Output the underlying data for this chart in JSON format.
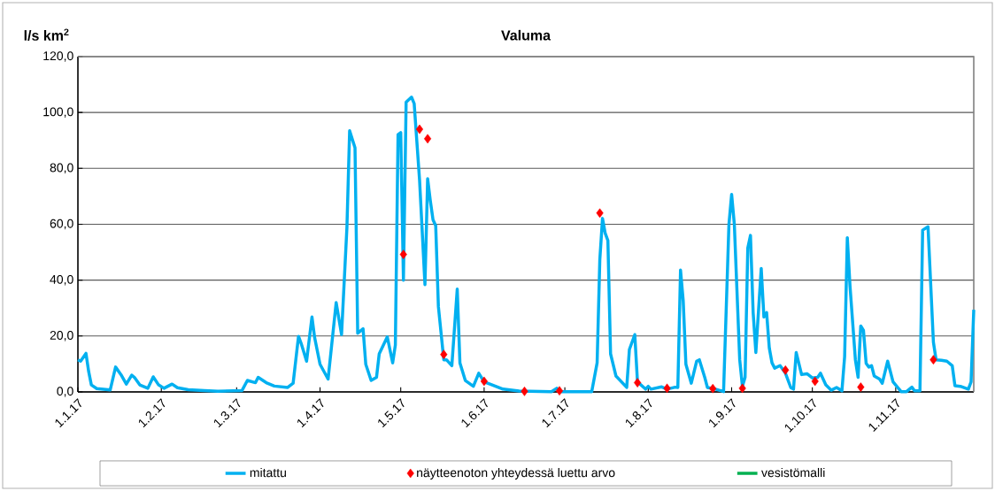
{
  "chart_data": {
    "type": "line",
    "title": "Valuma",
    "ylabel": "l/s km$^{2}$",
    "xlim": [
      "2017-01-01",
      "2017-11-30"
    ],
    "xticks": [
      {
        "value": "2017-01-01",
        "label": "1.1.17"
      },
      {
        "value": "2017-02-01",
        "label": "1.2.17"
      },
      {
        "value": "2017-03-01",
        "label": "1.3.17"
      },
      {
        "value": "2017-04-01",
        "label": "1.4.17"
      },
      {
        "value": "2017-05-01",
        "label": "1.5.17"
      },
      {
        "value": "2017-06-01",
        "label": "1.6.17"
      },
      {
        "value": "2017-07-01",
        "label": "1.7.17"
      },
      {
        "value": "2017-08-01",
        "label": "1.8.17"
      },
      {
        "value": "2017-09-01",
        "label": "1.9.17"
      },
      {
        "value": "2017-10-01",
        "label": "1.10.17"
      },
      {
        "value": "2017-11-01",
        "label": "1.11.17"
      }
    ],
    "ylim": [
      0,
      120
    ],
    "yticks": [
      {
        "value": 0,
        "label": "0,0"
      },
      {
        "value": 20,
        "label": "20,0"
      },
      {
        "value": 40,
        "label": "40,0"
      },
      {
        "value": 60,
        "label": "60,0"
      },
      {
        "value": 80,
        "label": "80,0"
      },
      {
        "value": 100,
        "label": "100,0"
      },
      {
        "value": 120,
        "label": "120,0"
      }
    ],
    "grid": "y",
    "legend": "bottom",
    "series": [
      {
        "name": "mitattu",
        "marker": "none",
        "color": "#00b0f0",
        "x": [
          "2017-01-01",
          "2017-01-02",
          "2017-01-04",
          "2017-01-05",
          "2017-01-06",
          "2017-01-08",
          "2017-01-13",
          "2017-01-15",
          "2017-01-17",
          "2017-01-19",
          "2017-01-21",
          "2017-01-22",
          "2017-01-24",
          "2017-01-27",
          "2017-01-29",
          "2017-01-31",
          "2017-02-02",
          "2017-02-05",
          "2017-02-07",
          "2017-02-11",
          "2017-02-17",
          "2017-02-22",
          "2017-03-03",
          "2017-03-05",
          "2017-03-08",
          "2017-03-09",
          "2017-03-12",
          "2017-03-15",
          "2017-03-20",
          "2017-03-22",
          "2017-03-24",
          "2017-03-25",
          "2017-03-27",
          "2017-03-29",
          "2017-03-30",
          "2017-04-01",
          "2017-04-04",
          "2017-04-07",
          "2017-04-09",
          "2017-04-11",
          "2017-04-12",
          "2017-04-14",
          "2017-04-15",
          "2017-04-17",
          "2017-04-18",
          "2017-04-20",
          "2017-04-22",
          "2017-04-23",
          "2017-04-26",
          "2017-04-28",
          "2017-04-29",
          "2017-04-30",
          "2017-05-01",
          "2017-05-02",
          "2017-05-03",
          "2017-05-05",
          "2017-05-06",
          "2017-05-07",
          "2017-05-08",
          "2017-05-10",
          "2017-05-11",
          "2017-05-12",
          "2017-05-13",
          "2017-05-14",
          "2017-05-15",
          "2017-05-17",
          "2017-05-18",
          "2017-05-20",
          "2017-05-22",
          "2017-05-23",
          "2017-05-25",
          "2017-05-28",
          "2017-05-30",
          "2017-06-01",
          "2017-06-04",
          "2017-06-08",
          "2017-06-14",
          "2017-06-26",
          "2017-06-28",
          "2017-06-29",
          "2017-07-11",
          "2017-07-13",
          "2017-07-14",
          "2017-07-15",
          "2017-07-16",
          "2017-07-17",
          "2017-07-18",
          "2017-07-20",
          "2017-07-24",
          "2017-07-25",
          "2017-07-27",
          "2017-07-28",
          "2017-07-31",
          "2017-08-01",
          "2017-08-02",
          "2017-08-06",
          "2017-08-08",
          "2017-08-11",
          "2017-08-12",
          "2017-08-13",
          "2017-08-14",
          "2017-08-15",
          "2017-08-17",
          "2017-08-19",
          "2017-08-20",
          "2017-08-22",
          "2017-08-23",
          "2017-08-26",
          "2017-08-29",
          "2017-08-31",
          "2017-09-01",
          "2017-09-02",
          "2017-09-04",
          "2017-09-05",
          "2017-09-06",
          "2017-09-07",
          "2017-09-08",
          "2017-09-09",
          "2017-09-10",
          "2017-09-12",
          "2017-09-13",
          "2017-09-14",
          "2017-09-15",
          "2017-09-16",
          "2017-09-17",
          "2017-09-19",
          "2017-09-21",
          "2017-09-23",
          "2017-09-24",
          "2017-09-25",
          "2017-09-27",
          "2017-09-29",
          "2017-10-01",
          "2017-10-03",
          "2017-10-04",
          "2017-10-06",
          "2017-10-08",
          "2017-10-10",
          "2017-10-12",
          "2017-10-13",
          "2017-10-14",
          "2017-10-15",
          "2017-10-17",
          "2017-10-18",
          "2017-10-19",
          "2017-10-20",
          "2017-10-21",
          "2017-10-22",
          "2017-10-23",
          "2017-10-24",
          "2017-10-26",
          "2017-10-27",
          "2017-10-29",
          "2017-10-31",
          "2017-11-03",
          "2017-11-05",
          "2017-11-07",
          "2017-11-08",
          "2017-11-10",
          "2017-11-11",
          "2017-11-13",
          "2017-11-15",
          "2017-11-16",
          "2017-11-18",
          "2017-11-20",
          "2017-11-22",
          "2017-11-23",
          "2017-11-25",
          "2017-11-28",
          "2017-11-29",
          "2017-11-30"
        ],
        "values": [
          11.5,
          11.0,
          13.8,
          7.3,
          2.5,
          1.2,
          0.7,
          8.9,
          6.2,
          2.8,
          6.0,
          5.2,
          2.5,
          1.3,
          5.4,
          2.5,
          1.3,
          2.8,
          1.5,
          0.8,
          0.5,
          0.2,
          0.5,
          4.1,
          3.3,
          5.2,
          3.3,
          2.1,
          1.6,
          3.1,
          19.9,
          17.3,
          11.0,
          26.8,
          19.4,
          9.9,
          4.6,
          32.0,
          20.5,
          58.9,
          93.5,
          87.4,
          21.0,
          22.6,
          9.9,
          4.1,
          5.2,
          13.6,
          19.7,
          10.4,
          16.8,
          92.1,
          92.8,
          40.0,
          103.7,
          105.5,
          103.2,
          89.5,
          75.8,
          38.4,
          76.3,
          68.4,
          61.6,
          59.5,
          30.5,
          11.5,
          11.5,
          9.4,
          36.8,
          10.4,
          4.1,
          2.0,
          6.7,
          3.6,
          2.5,
          1.0,
          0.3,
          0.1,
          1.3,
          0.1,
          0.1,
          10.4,
          47.3,
          62.1,
          56.8,
          54.2,
          13.6,
          5.7,
          1.6,
          15.2,
          20.5,
          3.6,
          1.0,
          2.0,
          1.0,
          1.8,
          1.0,
          1.7,
          1.6,
          43.6,
          32.6,
          9.9,
          3.1,
          11.0,
          11.5,
          5.2,
          1.6,
          1.0,
          0.1,
          60.0,
          70.7,
          60.0,
          11.5,
          2.0,
          5.2,
          51.5,
          56.0,
          28.4,
          14.1,
          44.2,
          26.8,
          28.4,
          15.7,
          10.4,
          8.5,
          9.4,
          6.7,
          1.5,
          1.0,
          14.1,
          6.2,
          6.5,
          5.0,
          5.2,
          6.7,
          2.5,
          0.6,
          1.6,
          0.4,
          12.6,
          55.2,
          37.9,
          11.5,
          5.2,
          23.6,
          22.0,
          10.2,
          8.9,
          9.4,
          5.7,
          4.6,
          3.1,
          11.0,
          3.6,
          0.1,
          0.1,
          1.7,
          0.4,
          0.4,
          57.9,
          59.1,
          17.8,
          11.5,
          11.3,
          11.0,
          9.4,
          2.2,
          2.0,
          1.0,
          3.6,
          29.4
        ]
      },
      {
        "name": "näytteenoton yhteydessä luettu arvo",
        "type": "scatter",
        "marker": "diamond",
        "color": "#ff0000",
        "x": [
          "2017-05-02",
          "2017-05-08",
          "2017-05-11",
          "2017-05-17",
          "2017-06-01",
          "2017-06-16",
          "2017-06-29",
          "2017-07-14",
          "2017-07-28",
          "2017-08-08",
          "2017-08-25",
          "2017-09-05",
          "2017-09-21",
          "2017-10-02",
          "2017-10-19",
          "2017-11-15"
        ],
        "values": [
          49.2,
          94.0,
          90.6,
          13.4,
          3.8,
          0.2,
          0.4,
          64.0,
          3.3,
          1.3,
          1.2,
          1.3,
          7.8,
          3.8,
          1.7,
          11.5
        ]
      },
      {
        "name": "vesistömalli",
        "marker": "none",
        "color": "#00b050"
      }
    ]
  }
}
